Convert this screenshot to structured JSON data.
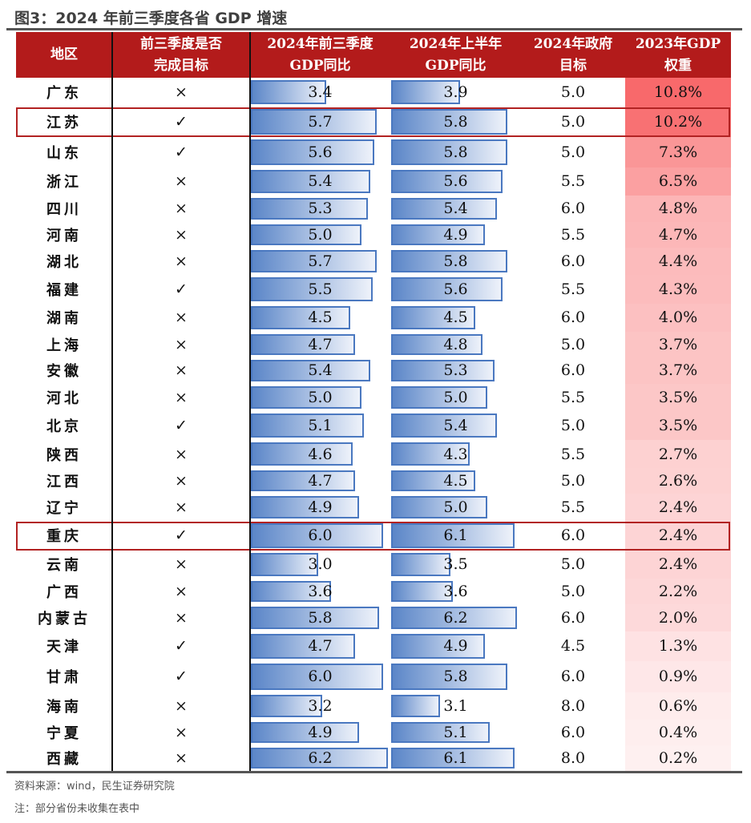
{
  "title": "图3：2024 年前三季度各省 GDP 增速",
  "headers": [
    "地区",
    "前三季度是否\n完成目标",
    "2024年前三季度\nGDP同比",
    "2024年上半年\nGDP同比",
    "2024年政府\n目标",
    "2023年GDP\n权重"
  ],
  "rows": [
    [
      "广东",
      "×",
      "3.4",
      "3.9",
      "5.0",
      "10.8%"
    ],
    [
      "江苏",
      "✓",
      "5.7",
      "5.8",
      "5.0",
      "10.2%"
    ],
    [
      "山东",
      "✓",
      "5.6",
      "5.8",
      "5.0",
      "7.3%"
    ],
    [
      "浙江",
      "×",
      "5.4",
      "5.6",
      "5.5",
      "6.5%"
    ],
    [
      "四川",
      "×",
      "5.3",
      "5.4",
      "6.0",
      "4.8%"
    ],
    [
      "河南",
      "×",
      "5.0",
      "4.9",
      "5.5",
      "4.7%"
    ],
    [
      "湖北",
      "×",
      "5.7",
      "5.8",
      "6.0",
      "4.4%"
    ],
    [
      "福建",
      "✓",
      "5.5",
      "5.6",
      "5.5",
      "4.3%"
    ],
    [
      "湖南",
      "×",
      "4.5",
      "4.5",
      "6.0",
      "4.0%"
    ],
    [
      "上海",
      "×",
      "4.7",
      "4.8",
      "5.0",
      "3.7%"
    ],
    [
      "安徽",
      "×",
      "5.4",
      "5.3",
      "6.0",
      "3.7%"
    ],
    [
      "河北",
      "×",
      "5.0",
      "5.0",
      "5.5",
      "3.5%"
    ],
    [
      "北京",
      "✓",
      "5.1",
      "5.4",
      "5.0",
      "3.5%"
    ],
    [
      "陕西",
      "×",
      "4.6",
      "4.3",
      "5.5",
      "2.7%"
    ],
    [
      "江西",
      "×",
      "4.7",
      "4.5",
      "5.0",
      "2.6%"
    ],
    [
      "辽宁",
      "×",
      "4.9",
      "5.0",
      "5.5",
      "2.4%"
    ],
    [
      "重庆",
      "✓",
      "6.0",
      "6.1",
      "6.0",
      "2.4%"
    ],
    [
      "云南",
      "×",
      "3.0",
      "3.5",
      "5.0",
      "2.4%"
    ],
    [
      "广西",
      "×",
      "3.6",
      "3.6",
      "5.0",
      "2.2%"
    ],
    [
      "内蒙古",
      "×",
      "5.8",
      "6.2",
      "6.0",
      "2.0%"
    ],
    [
      "天津",
      "✓",
      "4.7",
      "4.9",
      "4.5",
      "1.3%"
    ],
    [
      "甘肃",
      "✓",
      "6.0",
      "5.8",
      "6.0",
      "0.9%"
    ],
    [
      "海南",
      "×",
      "3.2",
      "3.1",
      "8.0",
      "0.6%"
    ],
    [
      "宁夏",
      "×",
      "4.9",
      "5.1",
      "6.0",
      "0.4%"
    ],
    [
      "西藏",
      "×",
      "6.2",
      "6.1",
      "8.0",
      "0.2%"
    ]
  ],
  "highlighted_rows": [
    "江苏",
    "重庆"
  ],
  "colors": {
    "header": "#b31b1b",
    "bar": "#5b86c8",
    "weight": "#f8696b",
    "highlight": "#b22222"
  },
  "source": "资料来源：wind，民生证券研究院",
  "note": "注：部分省份未收集在表中"
}
